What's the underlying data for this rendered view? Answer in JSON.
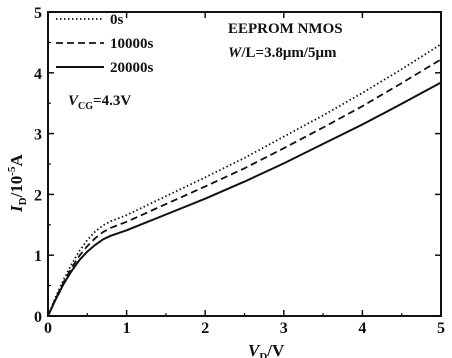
{
  "chart_data": {
    "type": "line",
    "title": "",
    "xlim": [
      0,
      5
    ],
    "ylim": [
      0,
      5
    ],
    "xticks": [
      "0",
      "1",
      "2",
      "3",
      "4",
      "5"
    ],
    "yticks": [
      "0",
      "1",
      "2",
      "3",
      "4",
      "5"
    ],
    "xlabel": {
      "symbol": "V",
      "sub": "D",
      "unit": "/V"
    },
    "ylabel": {
      "symbol": "I",
      "sub": "D",
      "unit": "/10",
      "sup": "-5",
      "tail": "A"
    },
    "grid": false,
    "legend_position": "top-left",
    "annotations": {
      "line1": "EEPROM NMOS",
      "line2_w": "W",
      "line2_rest": "/L=3.8μm/5μm",
      "vcg_symbol": "V",
      "vcg_sub": "CG",
      "vcg_value": "=4.3V"
    },
    "series": [
      {
        "name": "0s",
        "style": "dotted",
        "color": "#111111",
        "x": [
          0,
          0.1,
          0.2,
          0.3,
          0.4,
          0.5,
          0.6,
          0.7,
          0.8,
          1.0,
          1.5,
          2.0,
          2.5,
          3.0,
          3.5,
          4.0,
          4.5,
          5.0
        ],
        "y": [
          0,
          0.32,
          0.6,
          0.85,
          1.07,
          1.25,
          1.39,
          1.49,
          1.56,
          1.66,
          1.97,
          2.28,
          2.6,
          2.95,
          3.3,
          3.67,
          4.06,
          4.47
        ]
      },
      {
        "name": "10000s",
        "style": "dashed",
        "color": "#111111",
        "x": [
          0,
          0.1,
          0.2,
          0.3,
          0.4,
          0.5,
          0.6,
          0.7,
          0.8,
          1.0,
          1.5,
          2.0,
          2.5,
          3.0,
          3.5,
          4.0,
          4.5,
          5.0
        ],
        "y": [
          0,
          0.3,
          0.56,
          0.79,
          0.99,
          1.15,
          1.28,
          1.38,
          1.45,
          1.55,
          1.84,
          2.13,
          2.43,
          2.76,
          3.1,
          3.45,
          3.83,
          4.22
        ]
      },
      {
        "name": "20000s",
        "style": "solid",
        "color": "#111111",
        "x": [
          0,
          0.1,
          0.2,
          0.3,
          0.4,
          0.5,
          0.6,
          0.7,
          0.8,
          1.0,
          1.5,
          2.0,
          2.5,
          3.0,
          3.5,
          4.0,
          4.5,
          5.0
        ],
        "y": [
          0,
          0.28,
          0.53,
          0.74,
          0.92,
          1.06,
          1.17,
          1.26,
          1.32,
          1.41,
          1.67,
          1.93,
          2.21,
          2.51,
          2.83,
          3.15,
          3.49,
          3.84
        ]
      }
    ]
  }
}
